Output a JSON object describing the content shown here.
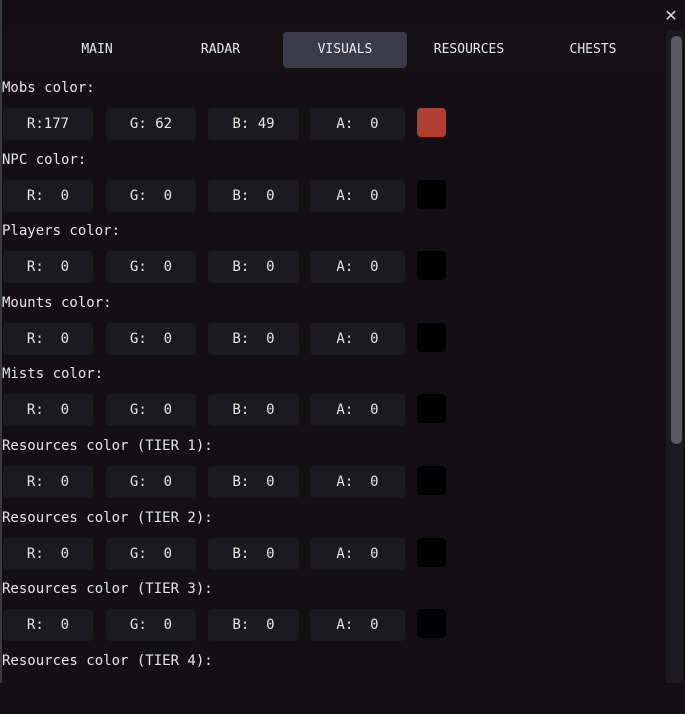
{
  "window": {
    "close_icon": "close-icon"
  },
  "tabs": [
    {
      "label": "MAIN",
      "active": false
    },
    {
      "label": "RADAR",
      "active": false
    },
    {
      "label": "VISUALS",
      "active": true
    },
    {
      "label": "RESOURCES",
      "active": false
    },
    {
      "label": "CHESTS",
      "active": false
    }
  ],
  "groups": [
    {
      "label": "Mobs color:",
      "r": "R:177",
      "g": "G: 62",
      "b": "B: 49",
      "a": "A:  0",
      "swatch": "#b13e31"
    },
    {
      "label": "NPC color:",
      "r": "R:  0",
      "g": "G:  0",
      "b": "B:  0",
      "a": "A:  0",
      "swatch": "#000000"
    },
    {
      "label": "Players color:",
      "r": "R:  0",
      "g": "G:  0",
      "b": "B:  0",
      "a": "A:  0",
      "swatch": "#000000"
    },
    {
      "label": "Mounts color:",
      "r": "R:  0",
      "g": "G:  0",
      "b": "B:  0",
      "a": "A:  0",
      "swatch": "#000000"
    },
    {
      "label": "Mists color:",
      "r": "R:  0",
      "g": "G:  0",
      "b": "B:  0",
      "a": "A:  0",
      "swatch": "#000000"
    },
    {
      "label": "Resources color (TIER 1):",
      "r": "R:  0",
      "g": "G:  0",
      "b": "B:  0",
      "a": "A:  0",
      "swatch": "#000000"
    },
    {
      "label": "Resources color (TIER 2):",
      "r": "R:  0",
      "g": "G:  0",
      "b": "B:  0",
      "a": "A:  0",
      "swatch": "#000000"
    },
    {
      "label": "Resources color (TIER 3):",
      "r": "R:  0",
      "g": "G:  0",
      "b": "B:  0",
      "a": "A:  0",
      "swatch": "#000000"
    },
    {
      "label": "Resources color (TIER 4):"
    }
  ]
}
